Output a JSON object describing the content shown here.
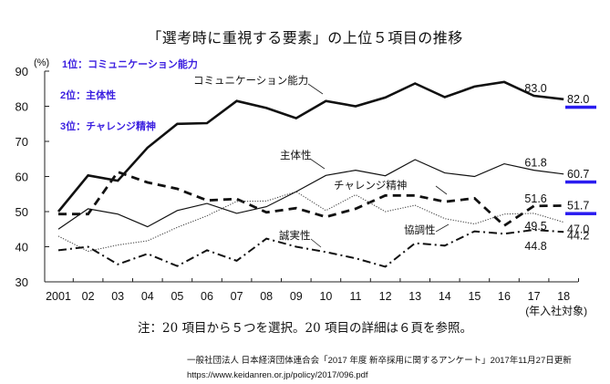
{
  "chart_data": {
    "type": "line",
    "title": "「選考時に重視する要素」の上位５項目の推移",
    "ylabel": "(%)",
    "xlabel": "(年入社対象)",
    "ylim": [
      30,
      90
    ],
    "yticks": [
      30,
      40,
      50,
      60,
      70,
      80,
      90
    ],
    "grid": false,
    "categories": [
      "2001",
      "02",
      "03",
      "04",
      "05",
      "06",
      "07",
      "08",
      "09",
      "10",
      "11",
      "12",
      "13",
      "14",
      "15",
      "16",
      "17",
      "18"
    ],
    "series": [
      {
        "name": "コミュニケーション能力",
        "style": "thick-solid",
        "values": [
          50.0,
          60.3,
          58.8,
          68.2,
          75.0,
          75.2,
          81.5,
          79.5,
          76.6,
          81.5,
          80.0,
          82.5,
          86.5,
          82.6,
          85.6,
          86.9,
          83.0,
          82.0
        ]
      },
      {
        "name": "主体性",
        "style": "thin-solid",
        "values": [
          45.0,
          50.8,
          49.3,
          45.7,
          50.3,
          52.3,
          49.5,
          51.4,
          55.7,
          60.3,
          61.8,
          60.2,
          64.8,
          61.0,
          60.0,
          63.6,
          61.8,
          60.7
        ]
      },
      {
        "name": "チャレンジ精神",
        "style": "thick-dashed",
        "values": [
          49.3,
          49.3,
          61.3,
          58.3,
          56.5,
          53.2,
          53.6,
          49.8,
          51.0,
          48.5,
          50.8,
          54.6,
          54.6,
          52.8,
          53.8,
          46.0,
          51.6,
          51.7
        ]
      },
      {
        "name": "協調性",
        "style": "dotted",
        "values": [
          43.0,
          38.7,
          40.5,
          41.7,
          45.5,
          48.8,
          52.9,
          53.0,
          55.7,
          50.3,
          54.8,
          50.0,
          51.8,
          48.0,
          46.5,
          49.3,
          49.5,
          47.0
        ]
      },
      {
        "name": "誠実性",
        "style": "dash-dot",
        "values": [
          39.0,
          40.0,
          35.0,
          38.0,
          34.5,
          39.0,
          36.0,
          42.3,
          40.0,
          38.5,
          36.7,
          34.3,
          41.0,
          40.3,
          44.4,
          43.7,
          44.8,
          44.2
        ]
      }
    ],
    "value_labels": [
      {
        "series": "コミュニケーション能力",
        "year": "17",
        "text": "83.0"
      },
      {
        "series": "コミュニケーション能力",
        "year": "18",
        "text": "82.0",
        "highlight": true
      },
      {
        "series": "主体性",
        "year": "17",
        "text": "61.8"
      },
      {
        "series": "主体性",
        "year": "18",
        "text": "60.7",
        "highlight": true
      },
      {
        "series": "チャレンジ精神",
        "year": "17",
        "text": "51.6"
      },
      {
        "series": "チャレンジ精神",
        "year": "18",
        "text": "51.7",
        "highlight": true
      },
      {
        "series": "協調性",
        "year": "17",
        "text": "49.5"
      },
      {
        "series": "協調性",
        "year": "18",
        "text": "47.0"
      },
      {
        "series": "誠実性",
        "year": "17",
        "text": "44.8"
      },
      {
        "series": "誠実性",
        "year": "18",
        "text": "44.2"
      }
    ],
    "series_callouts": [
      {
        "text": "コミュニケーション能力",
        "series": "コミュニケーション能力"
      },
      {
        "text": "主体性",
        "series": "主体性"
      },
      {
        "text": "チャレンジ精神",
        "series": "チャレンジ精神"
      },
      {
        "text": "誠実性",
        "series": "誠実性"
      },
      {
        "text": "協調性",
        "series": "協調性"
      }
    ],
    "ranking_legend": [
      "1位：コミュニケーション能力",
      "2位：主体性",
      "3位：チャレンジ精神"
    ],
    "colors": {
      "line": "#111111",
      "highlight": "#2a1cf0",
      "legend_text": "#3b1fe0"
    }
  },
  "note": "注：20 項目から５つを選択。20 項目の詳細は６頁を参照。",
  "source": {
    "line1": "一般社団法人 日本経済団体連合会「2017 年度 新卒採用に関するアンケート」2017年11月27日更新",
    "line2": "https://www.keidanren.or.jp/policy/2017/096.pdf"
  }
}
